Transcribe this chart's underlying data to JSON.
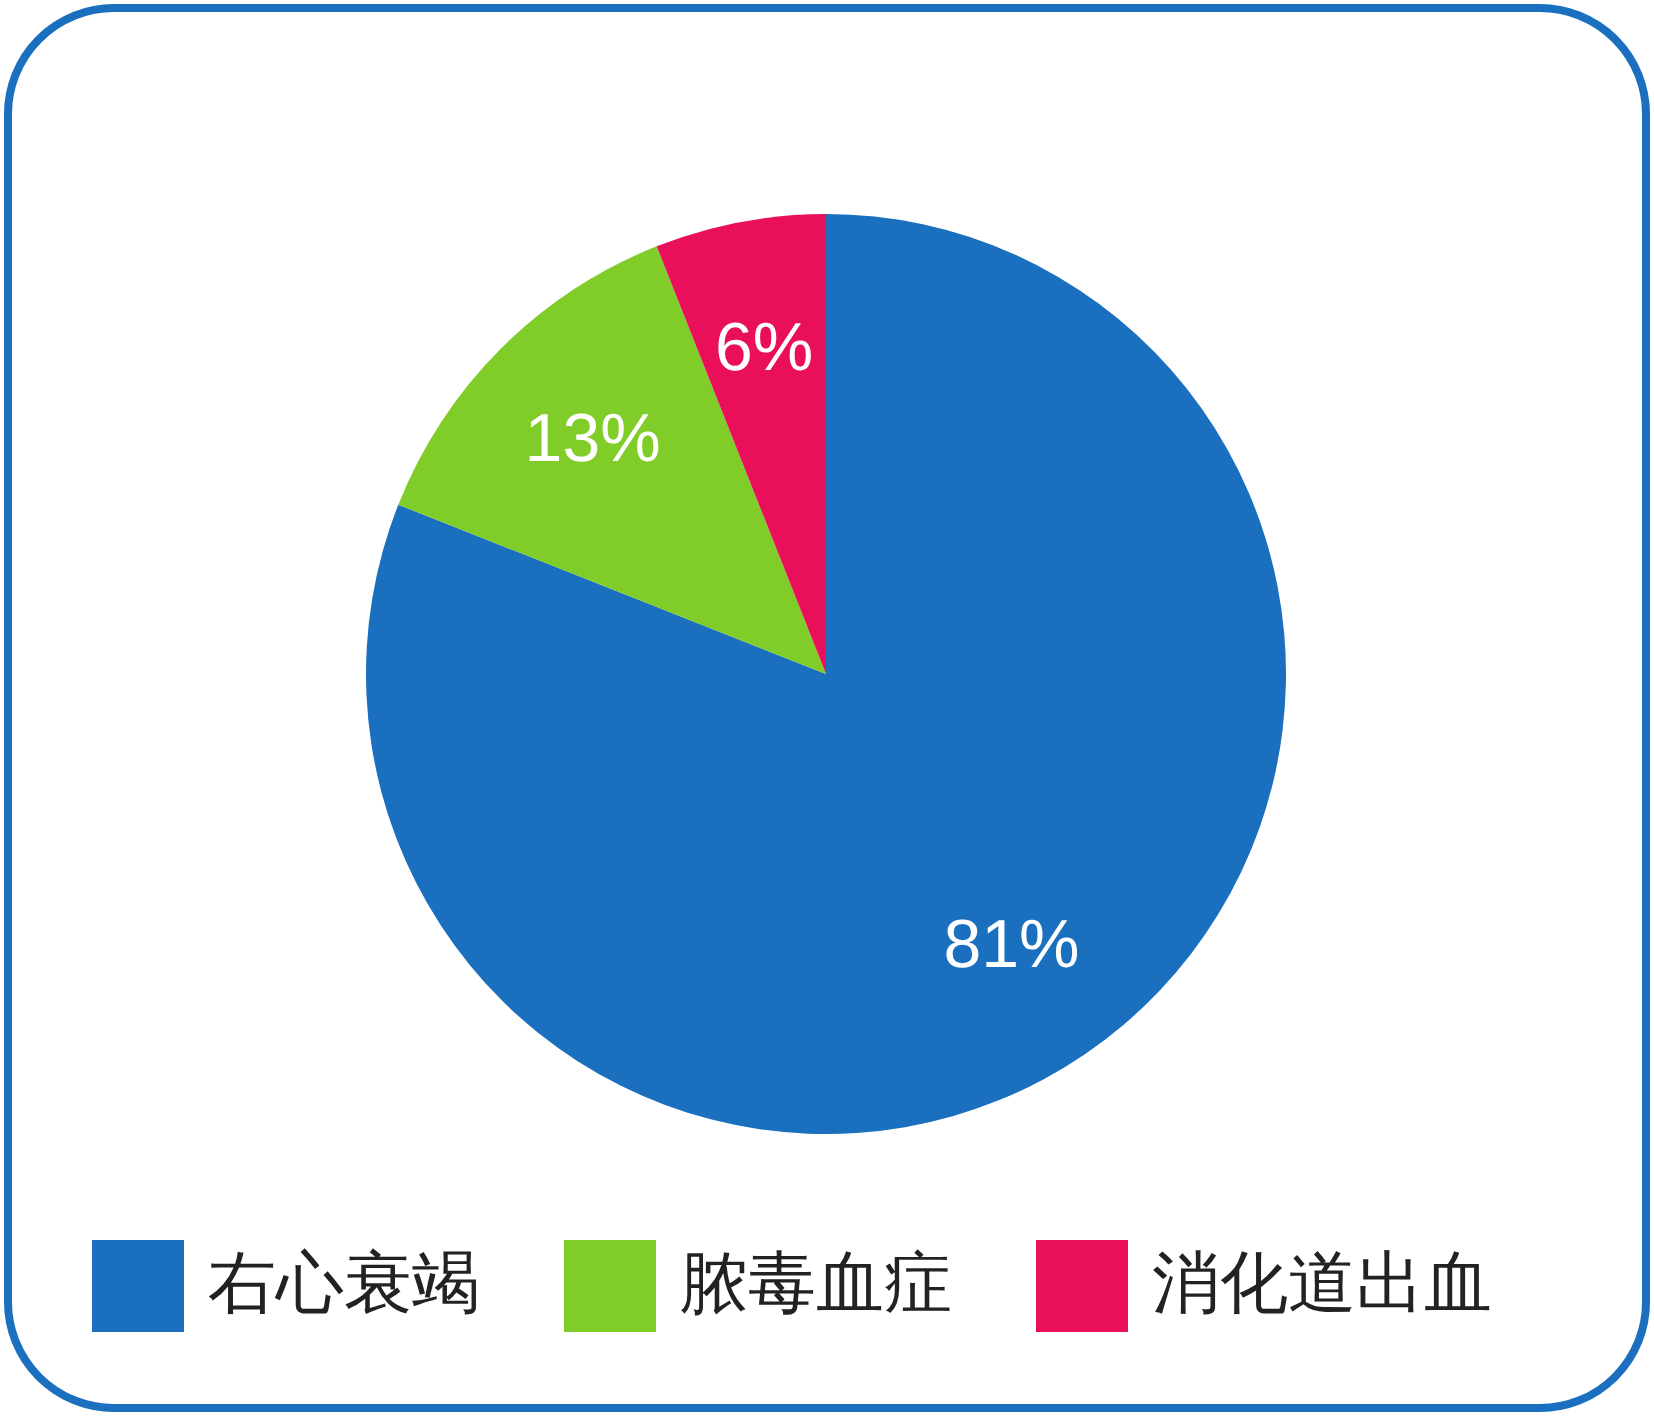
{
  "chart_data": {
    "type": "pie",
    "categories": [
      "右心衰竭",
      "脓毒血症",
      "消化道出血"
    ],
    "values": [
      81,
      13,
      6
    ],
    "colors": [
      "#1a6fbe",
      "#80cc28",
      "#ea0f5a"
    ],
    "value_labels": [
      "81%",
      "13%",
      "6%"
    ],
    "legend": "bottom"
  }
}
